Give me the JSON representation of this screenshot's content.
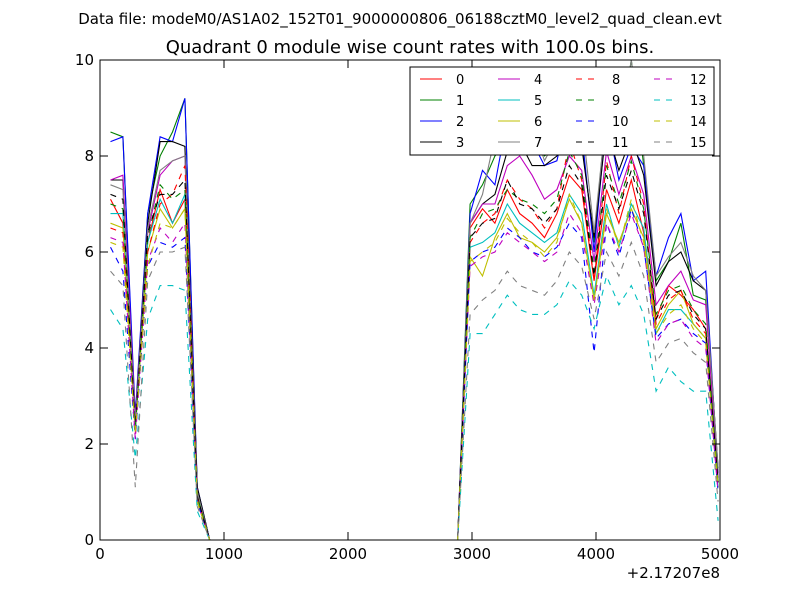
{
  "suptitle": "Data file: modeM0/AS1A02_152T01_9000000806_06188cztM0_level2_quad_clean.evt",
  "chart_data": {
    "type": "line",
    "title": "Quadrant 0 module wise count rates with 100.0s bins.",
    "xlabel": "",
    "ylabel": "",
    "xlim": [
      0,
      5000
    ],
    "ylim": [
      0,
      10
    ],
    "x_offset_label": "+2.17207e8",
    "xticks": [
      0,
      1000,
      2000,
      3000,
      4000,
      5000
    ],
    "xtick_labels": [
      "0",
      "1000",
      "2000",
      "3000",
      "4000",
      "5000"
    ],
    "yticks": [
      0,
      2,
      4,
      6,
      8,
      10
    ],
    "ytick_labels": [
      "0",
      "2",
      "4",
      "6",
      "8",
      "10"
    ],
    "legend_position": "top-right",
    "legend_columns": 4,
    "x": [
      85,
      185,
      285,
      385,
      485,
      585,
      685,
      785,
      885,
      985,
      1985,
      2885,
      2985,
      3085,
      3185,
      3285,
      3385,
      3485,
      3585,
      3685,
      3785,
      3885,
      3985,
      4085,
      4185,
      4285,
      4385,
      4485,
      4585,
      4685,
      4785,
      4885,
      4985
    ],
    "series": [
      {
        "name": "0",
        "color": "#ff0000",
        "dash": "solid",
        "values": [
          7.1,
          6.6,
          2.4,
          6.2,
          7.3,
          6.6,
          7.1,
          0.9,
          0,
          0,
          0,
          0,
          6.5,
          6.9,
          6.6,
          7.3,
          6.8,
          6.6,
          6.3,
          6.8,
          7.6,
          7.3,
          5.4,
          7.3,
          6.6,
          7.5,
          6.4,
          4.6,
          5.3,
          5.1,
          4.8,
          4.4,
          1.2
        ]
      },
      {
        "name": "1",
        "color": "#008000",
        "dash": "solid",
        "values": [
          8.5,
          8.4,
          2.4,
          6.8,
          8.0,
          8.5,
          9.2,
          1.0,
          0,
          0,
          0,
          0,
          7.0,
          7.4,
          8.0,
          8.3,
          8.2,
          8.4,
          8.0,
          8.2,
          8.7,
          8.3,
          6.2,
          9.0,
          8.3,
          10.0,
          7.8,
          5.4,
          5.8,
          6.6,
          5.1,
          5.0,
          1.4
        ]
      },
      {
        "name": "2",
        "color": "#0000ff",
        "dash": "solid",
        "values": [
          8.3,
          8.4,
          2.6,
          6.8,
          8.4,
          8.3,
          9.2,
          1.1,
          0,
          0,
          0,
          0,
          6.8,
          7.7,
          7.4,
          8.8,
          8.2,
          8.3,
          7.8,
          7.9,
          9.0,
          8.5,
          6.0,
          8.8,
          7.5,
          8.2,
          7.8,
          5.5,
          6.3,
          6.8,
          5.4,
          5.6,
          1.3
        ]
      },
      {
        "name": "3",
        "color": "#000000",
        "dash": "solid",
        "values": [
          7.5,
          7.5,
          2.5,
          6.6,
          8.3,
          8.3,
          8.2,
          1.1,
          0,
          0,
          0,
          0,
          6.6,
          7.0,
          7.2,
          8.1,
          8.3,
          7.8,
          7.8,
          8.0,
          8.4,
          8.2,
          6.3,
          8.6,
          7.7,
          8.4,
          7.6,
          5.3,
          5.8,
          6.0,
          5.4,
          5.2,
          1.5
        ]
      },
      {
        "name": "4",
        "color": "#bf00bf",
        "dash": "solid",
        "values": [
          7.5,
          7.6,
          2.5,
          6.4,
          7.6,
          7.9,
          8.0,
          0.9,
          0,
          0,
          0,
          0,
          6.6,
          7.0,
          7.0,
          7.8,
          8.0,
          7.6,
          7.1,
          7.3,
          8.0,
          7.7,
          5.8,
          8.1,
          7.2,
          8.0,
          7.2,
          4.9,
          5.3,
          5.6,
          5.0,
          4.9,
          1.3
        ]
      },
      {
        "name": "5",
        "color": "#00bfbf",
        "dash": "solid",
        "values": [
          6.8,
          6.8,
          2.3,
          6.2,
          7.1,
          6.6,
          7.2,
          0.9,
          0,
          0,
          0,
          0,
          6.1,
          6.2,
          6.4,
          7.0,
          6.6,
          6.4,
          6.2,
          6.4,
          7.2,
          6.8,
          5.1,
          7.0,
          6.1,
          7.0,
          6.5,
          4.3,
          4.8,
          4.8,
          4.5,
          4.2,
          1.1
        ]
      },
      {
        "name": "6",
        "color": "#bfbf00",
        "dash": "solid",
        "values": [
          6.6,
          6.5,
          2.3,
          6.0,
          6.9,
          6.5,
          6.9,
          0.8,
          0,
          0,
          0,
          0,
          5.9,
          5.5,
          6.3,
          6.8,
          6.3,
          6.2,
          6.0,
          6.3,
          7.1,
          6.6,
          5.0,
          6.8,
          6.2,
          6.9,
          6.3,
          4.4,
          4.9,
          5.2,
          4.5,
          4.2,
          1.2
        ]
      },
      {
        "name": "7",
        "color": "#808080",
        "dash": "solid",
        "values": [
          7.4,
          7.3,
          2.4,
          6.5,
          7.7,
          7.9,
          8.0,
          1.0,
          0,
          0,
          0,
          0,
          6.6,
          7.2,
          8.4,
          8.5,
          8.6,
          8.7,
          7.9,
          8.4,
          9.6,
          8.8,
          6.4,
          8.9,
          8.3,
          10.0,
          8.0,
          5.5,
          5.9,
          6.2,
          5.5,
          5.2,
          1.5
        ]
      },
      {
        "name": "8",
        "color": "#ff0000",
        "dash": "dashed",
        "values": [
          6.5,
          6.4,
          2.2,
          6.0,
          7.0,
          7.2,
          7.8,
          0.9,
          0,
          0,
          0,
          0,
          6.2,
          6.6,
          6.8,
          7.5,
          7.1,
          6.9,
          6.5,
          6.9,
          8.3,
          7.5,
          5.4,
          7.9,
          6.8,
          8.0,
          7.0,
          4.5,
          5.0,
          5.2,
          4.6,
          4.3,
          1.1
        ]
      },
      {
        "name": "9",
        "color": "#008000",
        "dash": "dashed",
        "values": [
          7.0,
          6.9,
          2.3,
          6.3,
          7.4,
          7.1,
          7.3,
          0.9,
          0,
          0,
          0,
          0,
          6.3,
          6.8,
          6.9,
          7.3,
          7.1,
          7.0,
          6.8,
          7.1,
          8.1,
          7.6,
          5.6,
          7.8,
          7.0,
          7.9,
          6.9,
          4.7,
          5.2,
          5.3,
          4.8,
          4.5,
          1.2
        ]
      },
      {
        "name": "10",
        "color": "#0000ff",
        "dash": "dashed",
        "values": [
          6.1,
          5.6,
          2.1,
          5.7,
          6.2,
          6.1,
          6.3,
          0.8,
          0,
          0,
          0,
          0,
          5.8,
          6.0,
          6.1,
          6.5,
          6.3,
          6.0,
          5.9,
          6.1,
          6.6,
          6.3,
          3.9,
          6.6,
          5.9,
          6.9,
          6.1,
          4.2,
          4.5,
          4.6,
          4.3,
          4.1,
          1.0
        ]
      },
      {
        "name": "11",
        "color": "#000000",
        "dash": "dashed",
        "values": [
          7.2,
          7.1,
          2.3,
          6.4,
          7.2,
          7.2,
          7.5,
          0.9,
          0,
          0,
          0,
          0,
          6.3,
          6.6,
          6.7,
          7.5,
          7.0,
          6.9,
          6.6,
          6.9,
          7.8,
          7.4,
          5.5,
          7.6,
          6.9,
          7.7,
          6.8,
          4.6,
          5.1,
          5.2,
          4.7,
          4.4,
          1.2
        ]
      },
      {
        "name": "12",
        "color": "#bf00bf",
        "dash": "dashed",
        "values": [
          6.3,
          6.2,
          2.1,
          5.8,
          6.5,
          6.2,
          6.6,
          0.8,
          0,
          0,
          0,
          0,
          5.7,
          5.9,
          6.0,
          6.4,
          6.2,
          6.0,
          5.8,
          6.0,
          6.8,
          6.4,
          4.9,
          6.6,
          6.0,
          6.8,
          6.1,
          4.1,
          4.5,
          4.6,
          4.2,
          4.0,
          1.0
        ]
      },
      {
        "name": "13",
        "color": "#00bfbf",
        "dash": "dashed",
        "values": [
          4.8,
          4.4,
          1.7,
          4.6,
          5.3,
          5.3,
          5.2,
          0.6,
          0,
          0,
          0,
          0,
          4.3,
          4.3,
          4.7,
          5.1,
          4.8,
          4.7,
          4.7,
          4.9,
          5.4,
          5.1,
          4.4,
          5.5,
          4.9,
          5.3,
          4.7,
          3.1,
          3.6,
          3.3,
          3.1,
          3.1,
          0.4
        ]
      },
      {
        "name": "14",
        "color": "#bfbf00",
        "dash": "dashed",
        "values": [
          6.2,
          6.1,
          2.2,
          5.7,
          6.6,
          6.5,
          6.9,
          0.8,
          0,
          0,
          0,
          0,
          5.8,
          6.0,
          6.2,
          6.7,
          6.4,
          6.2,
          5.9,
          6.2,
          7.2,
          6.6,
          5.0,
          6.9,
          6.1,
          7.1,
          6.2,
          4.3,
          4.7,
          4.9,
          4.4,
          4.1,
          1.1
        ]
      },
      {
        "name": "15",
        "color": "#808080",
        "dash": "dashed",
        "values": [
          5.6,
          5.3,
          1.1,
          5.4,
          6.0,
          6.0,
          6.1,
          0.7,
          0,
          0,
          0,
          0,
          4.7,
          5.0,
          5.2,
          5.6,
          5.3,
          5.2,
          5.1,
          5.4,
          6.0,
          5.7,
          4.6,
          6.0,
          5.5,
          6.2,
          5.5,
          3.7,
          4.1,
          4.2,
          3.9,
          3.7,
          0.8
        ]
      }
    ]
  }
}
